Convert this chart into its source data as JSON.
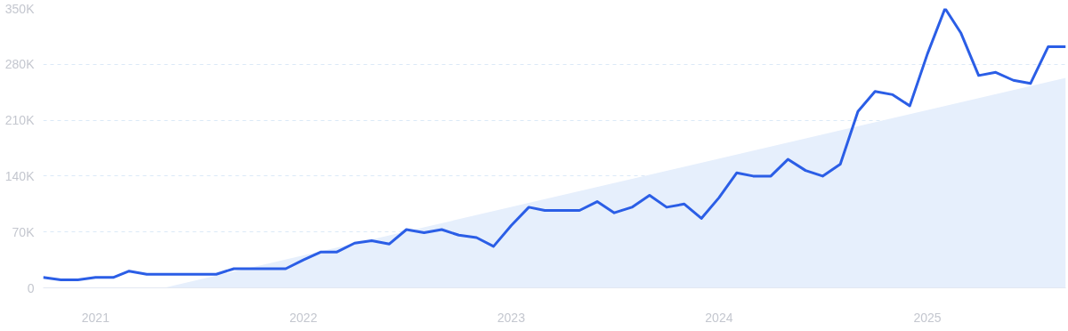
{
  "chart_data": {
    "type": "line",
    "x": [
      "2020-10",
      "2020-11",
      "2020-12",
      "2021-01",
      "2021-02",
      "2021-03",
      "2021-04",
      "2021-05",
      "2021-06",
      "2021-07",
      "2021-08",
      "2021-09",
      "2021-10",
      "2021-11",
      "2021-12",
      "2022-01",
      "2022-02",
      "2022-03",
      "2022-04",
      "2022-05",
      "2022-06",
      "2022-07",
      "2022-08",
      "2022-09",
      "2022-10",
      "2022-11",
      "2022-12",
      "2023-01",
      "2023-02",
      "2023-03",
      "2023-04",
      "2023-05",
      "2023-06",
      "2023-07",
      "2023-08",
      "2023-09",
      "2023-10",
      "2023-11",
      "2023-12",
      "2024-01",
      "2024-02",
      "2024-03",
      "2024-04",
      "2024-05",
      "2024-06",
      "2024-07",
      "2024-08",
      "2024-09",
      "2024-10",
      "2024-11",
      "2024-12",
      "2025-01",
      "2025-02",
      "2025-03",
      "2025-04",
      "2025-05",
      "2025-06",
      "2025-07",
      "2025-08",
      "2025-09"
    ],
    "series": [
      {
        "type": "area",
        "color": "#e6effc",
        "x": [
          "2021-05",
          "2025-09"
        ],
        "values": [
          0,
          263000
        ]
      },
      {
        "color": "#2b5ee6",
        "values": [
          13000,
          10000,
          10000,
          13000,
          13000,
          21000,
          17000,
          17000,
          17000,
          17000,
          17000,
          24000,
          24000,
          24000,
          24000,
          35000,
          45000,
          45000,
          56000,
          59000,
          55000,
          73000,
          69000,
          73000,
          66000,
          63000,
          52000,
          78000,
          101000,
          97000,
          97000,
          97000,
          108000,
          94000,
          101000,
          116000,
          101000,
          105000,
          87000,
          113000,
          144000,
          140000,
          140000,
          161000,
          147000,
          140000,
          155000,
          221000,
          246000,
          242000,
          228000,
          293000,
          350000,
          319000,
          266000,
          270000,
          260000,
          256000,
          302000,
          302000
        ]
      }
    ],
    "xlim": [
      "2020-10",
      "2025-09"
    ],
    "xticks": [
      {
        "value": "2021-01",
        "label": "2021"
      },
      {
        "value": "2022-01",
        "label": "2022"
      },
      {
        "value": "2023-01",
        "label": "2023"
      },
      {
        "value": "2024-01",
        "label": "2024"
      },
      {
        "value": "2025-01",
        "label": "2025"
      }
    ],
    "ylim": [
      0,
      350000
    ],
    "yticks": [
      0,
      {
        "value": 70000,
        "label": "70K"
      },
      {
        "value": 140000,
        "label": "140K"
      },
      {
        "value": 210000,
        "label": "210K"
      },
      {
        "value": 280000,
        "label": "280K"
      },
      {
        "value": 350000,
        "label": "350K"
      }
    ],
    "grid": "y",
    "line_style": "solid",
    "marker": "none"
  }
}
